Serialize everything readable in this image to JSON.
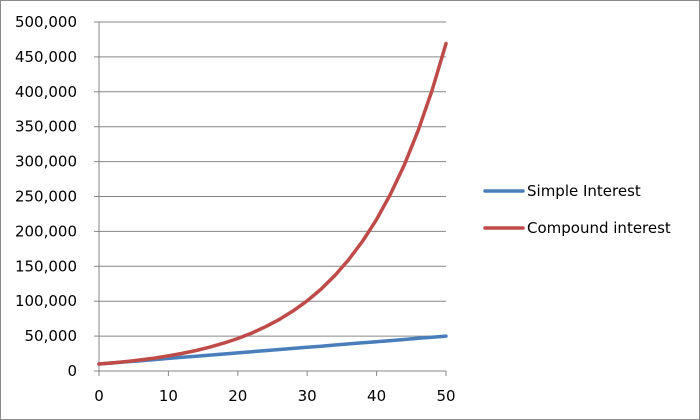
{
  "chart_data": {
    "type": "line",
    "title": "",
    "xlabel": "",
    "ylabel": "",
    "xlim": [
      0,
      50
    ],
    "ylim": [
      0,
      500000
    ],
    "x_ticks": [
      0,
      10,
      20,
      30,
      40,
      50
    ],
    "x_tick_labels": [
      "0",
      "10",
      "20",
      "30",
      "40",
      "50"
    ],
    "y_ticks": [
      0,
      50000,
      100000,
      150000,
      200000,
      250000,
      300000,
      350000,
      400000,
      450000,
      500000
    ],
    "y_tick_labels": [
      "0",
      "50,000",
      "100,000",
      "150,000",
      "200,000",
      "250,000",
      "300,000",
      "350,000",
      "400,000",
      "450,000",
      "500,000"
    ],
    "grid": "horizontal",
    "legend_position": "right",
    "x": [
      0,
      2,
      4,
      6,
      8,
      10,
      12,
      14,
      16,
      18,
      20,
      22,
      24,
      26,
      28,
      30,
      32,
      34,
      36,
      38,
      40,
      42,
      44,
      46,
      48,
      50
    ],
    "series": [
      {
        "name": "Simple Interest",
        "color": "#4a7ebb",
        "values": [
          10000,
          11600,
          13200,
          14800,
          16400,
          18000,
          19600,
          21200,
          22800,
          24400,
          26000,
          27600,
          29200,
          30800,
          32400,
          34000,
          35600,
          37200,
          38800,
          40400,
          42000,
          43600,
          45200,
          46800,
          48400,
          50000
        ]
      },
      {
        "name": "Compound interest",
        "color": "#be4b48",
        "values": [
          10000,
          11664,
          13605,
          15869,
          18509,
          21589,
          25182,
          29372,
          34259,
          39960,
          46610,
          54365,
          63412,
          73964,
          86271,
          100627,
          117371,
          136901,
          159682,
          186253,
          217245,
          253395,
          295560,
          344741,
          402106,
          469016
        ]
      }
    ]
  }
}
